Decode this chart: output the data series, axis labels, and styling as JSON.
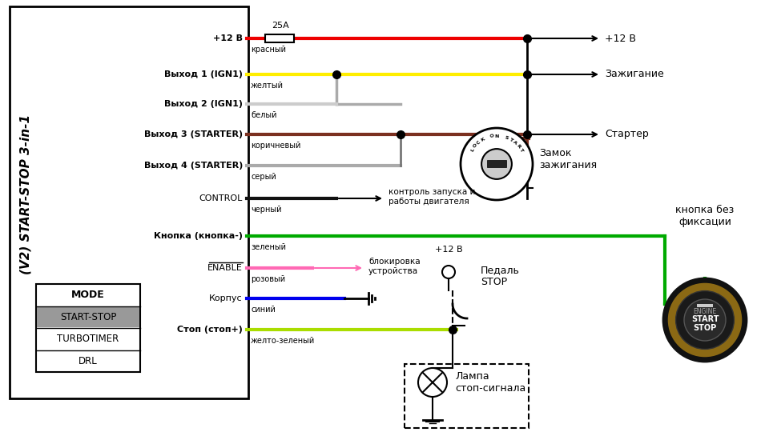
{
  "bg_color": "#ffffff",
  "title_rotated": "(V2) START-STOP 3-in-1",
  "wire_labels_left": [
    "+12 В",
    "Выход 1 (IGN1)",
    "Выход 2 (IGN1)",
    "Выход 3 (STARTER)",
    "Выход 4 (STARTER)",
    "CONTROL",
    "Кнопка (кнопка-)",
    "ENABLE",
    "Корпус",
    "Стоп (стоп+)"
  ],
  "wire_colors_names": [
    "красный",
    "желтый",
    "белый",
    "коричневый",
    "серый",
    "черный",
    "зеленый",
    "розовый",
    "синий",
    "желто-зеленый"
  ],
  "wire_colors_hex": [
    "#ee0000",
    "#ffee00",
    "#cccccc",
    "#7b3020",
    "#aaaaaa",
    "#111111",
    "#00aa00",
    "#ff69b4",
    "#0000ee",
    "#aadd00"
  ],
  "mode_items": [
    "MODE",
    "START-STOP",
    "TURBOTIMER",
    "DRL"
  ],
  "fuse_label": "25A",
  "control_label": "контроль запуска и\nработы двигателя",
  "enable_label": "блокировка\nустройства",
  "plus12_label": "+12 B",
  "pedal_label": "Педаль\nSTOP",
  "lamp_label": "Лампа\nстоп-сигнала",
  "right_label_12v": "+12 В",
  "right_label_ign": "Зажигание",
  "right_label_starter": "Стартер",
  "right_label_lock": "Замок\nзажигания",
  "right_label_btn": "кнопка без\nфиксации"
}
